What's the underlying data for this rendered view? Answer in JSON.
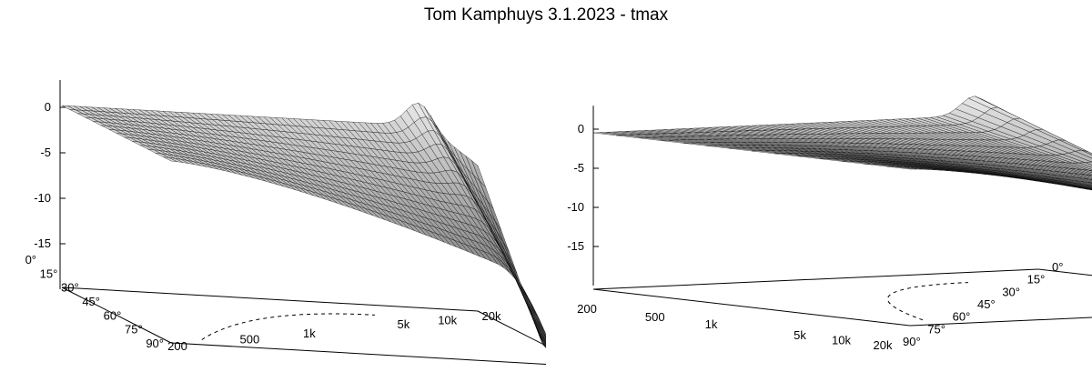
{
  "title": "Tom Kamphuys 3.1.2023 - tmax",
  "chart_data": [
    {
      "type": "surface",
      "view": "left",
      "z_ticks": [
        "0",
        "-5",
        "-10",
        "-15"
      ],
      "angle_ticks": [
        "0°",
        "15°",
        "30°",
        "45°",
        "60°",
        "75°",
        "90°"
      ],
      "freq_ticks": [
        "200",
        "500",
        "1k",
        "5k",
        "10k",
        "20k"
      ],
      "zlim": [
        -20,
        3
      ],
      "colors": {
        "light": "#f2f2f2",
        "dark": "#3a3a3a",
        "grid": "#000000"
      }
    },
    {
      "type": "surface",
      "view": "right",
      "z_ticks": [
        "0",
        "-5",
        "-10",
        "-15"
      ],
      "angle_ticks": [
        "0°",
        "15°",
        "30°",
        "45°",
        "60°",
        "75°",
        "90°"
      ],
      "freq_ticks": [
        "200",
        "500",
        "1k",
        "5k",
        "10k",
        "20k"
      ],
      "zlim": [
        -20,
        3
      ],
      "colors": {
        "light": "#f2f2f2",
        "dark": "#3a3a3a",
        "grid": "#000000"
      }
    }
  ]
}
